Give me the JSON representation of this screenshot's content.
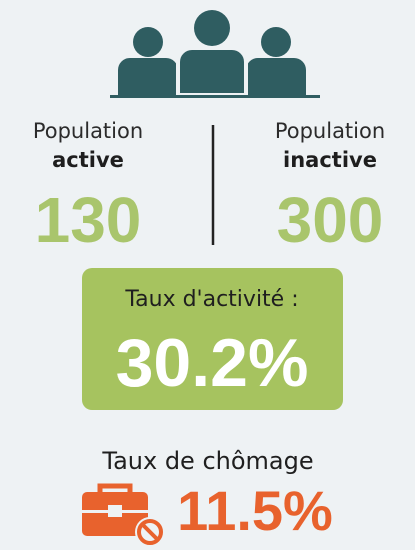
{
  "left": {
    "label": "Population",
    "label_bold": "active",
    "value": "130"
  },
  "right": {
    "label": "Population",
    "label_bold": "inactive",
    "value": "300"
  },
  "activity": {
    "label": "Taux d'activité :",
    "value": "30.2%"
  },
  "unemployment": {
    "label": "Taux de chômage",
    "value": "11.5%"
  }
}
